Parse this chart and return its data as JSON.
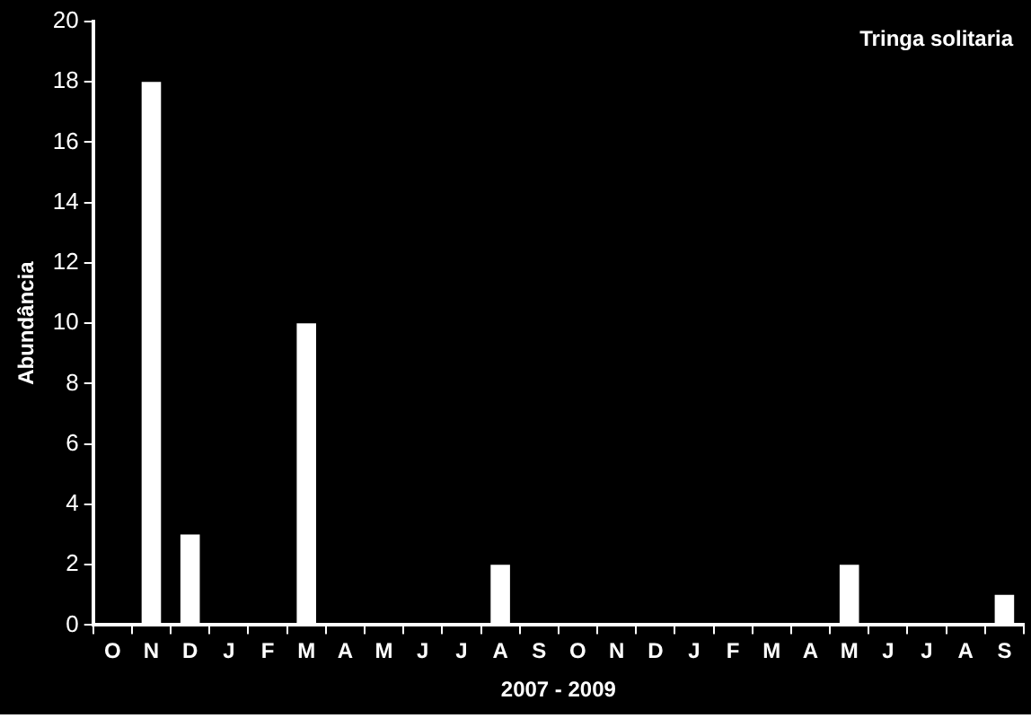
{
  "chart_data": {
    "type": "bar",
    "title": "Tringa solitaria",
    "xlabel": "2007 - 2009",
    "ylabel": "Abundância",
    "categories": [
      "O",
      "N",
      "D",
      "J",
      "F",
      "M",
      "A",
      "M",
      "J",
      "J",
      "A",
      "S",
      "O",
      "N",
      "D",
      "J",
      "F",
      "M",
      "A",
      "M",
      "J",
      "J",
      "A",
      "S"
    ],
    "values": [
      0,
      18,
      3,
      0,
      0,
      10,
      0,
      0,
      0,
      0,
      2,
      0,
      0,
      0,
      0,
      0,
      0,
      0,
      0,
      2,
      0,
      0,
      0,
      1
    ],
    "color": "#ffffff",
    "ylim": [
      0,
      20
    ],
    "yticks": [
      0,
      2,
      4,
      6,
      8,
      10,
      12,
      14,
      16,
      18,
      20
    ],
    "grid": false,
    "legend": false
  }
}
